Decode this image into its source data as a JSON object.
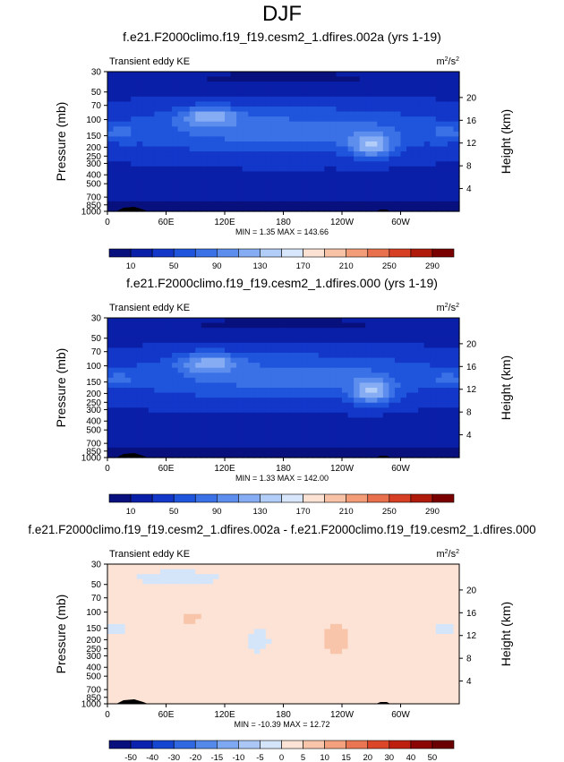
{
  "page": {
    "title": "DJF"
  },
  "panel_common": {
    "subtitle": "Transient eddy KE",
    "units_base": "m",
    "units_exp1": "2",
    "units_mid": "/s",
    "units_exp2": "2",
    "ylabel_left": "Pressure (mb)",
    "ylabel_right": "Height (km)",
    "pressure_ticks": [
      "30",
      "50",
      "70",
      "100",
      "150",
      "200",
      "250",
      "300",
      "400",
      "500",
      "700",
      "850",
      "1000"
    ],
    "height_ticks": [
      "20",
      "16",
      "12",
      "8",
      "4"
    ],
    "lon_ticks": [
      "0",
      "60E",
      "120E",
      "180",
      "120W",
      "60W"
    ]
  },
  "chart_data": [
    {
      "type": "heatmap",
      "title": "f.e21.F2000climo.f19_f19.cesm2_1.dfires.002a (yrs 1-19)",
      "min_max_text": "MIN =   1.35  MAX = 143.66",
      "min": 1.35,
      "max": 143.66,
      "colorbar_labels": [
        "10",
        "50",
        "90",
        "130",
        "170",
        "210",
        "250",
        "290"
      ],
      "colorbar_levels": [
        10,
        30,
        50,
        70,
        90,
        110,
        130,
        150,
        170,
        190,
        210,
        230,
        250,
        270,
        290
      ],
      "colors": [
        "#08107e",
        "#0a1fa8",
        "#1237c9",
        "#1f55dc",
        "#3a71e6",
        "#5d8eee",
        "#86adf4",
        "#b2cdf8",
        "#d8e6fb",
        "#fbe2d3",
        "#f8c2a6",
        "#f29c78",
        "#e8704c",
        "#d63f23",
        "#b01a0b",
        "#7a0000"
      ]
    },
    {
      "type": "heatmap",
      "title": "f.e21.F2000climo.f19_f19.cesm2_1.dfires.000 (yrs 1-19)",
      "min_max_text": "MIN =   1.33  MAX = 142.00",
      "min": 1.33,
      "max": 142.0,
      "colorbar_labels": [
        "10",
        "50",
        "90",
        "130",
        "170",
        "210",
        "250",
        "290"
      ],
      "colorbar_levels": [
        10,
        30,
        50,
        70,
        90,
        110,
        130,
        150,
        170,
        190,
        210,
        230,
        250,
        270,
        290
      ],
      "colors": [
        "#08107e",
        "#0a1fa8",
        "#1237c9",
        "#1f55dc",
        "#3a71e6",
        "#5d8eee",
        "#86adf4",
        "#b2cdf8",
        "#d8e6fb",
        "#fbe2d3",
        "#f8c2a6",
        "#f29c78",
        "#e8704c",
        "#d63f23",
        "#b01a0b",
        "#7a0000"
      ]
    },
    {
      "type": "heatmap",
      "title": "f.e21.F2000climo.f19_f19.cesm2_1.dfires.002a - f.e21.F2000climo.f19_f19.cesm2_1.dfires.000",
      "min_max_text": "MIN = -10.39  MAX =  12.72",
      "min": -10.39,
      "max": 12.72,
      "colorbar_labels": [
        "-50",
        "-40",
        "-30",
        "-20",
        "-15",
        "-10",
        "-5",
        "0",
        "5",
        "10",
        "15",
        "20",
        "30",
        "40",
        "50"
      ],
      "colorbar_levels": [
        -50,
        -40,
        -30,
        -20,
        -15,
        -10,
        -5,
        0,
        5,
        10,
        15,
        20,
        30,
        40,
        50
      ],
      "colors": [
        "#08107e",
        "#0a22ae",
        "#1546d2",
        "#2f68e0",
        "#5489ea",
        "#7ea8f1",
        "#aac7f6",
        "#d4e5fa",
        "#fde3d6",
        "#f8c5ab",
        "#f3a07e",
        "#ea7552",
        "#db4528",
        "#be200f",
        "#8c0606",
        "#6a0000"
      ]
    }
  ]
}
